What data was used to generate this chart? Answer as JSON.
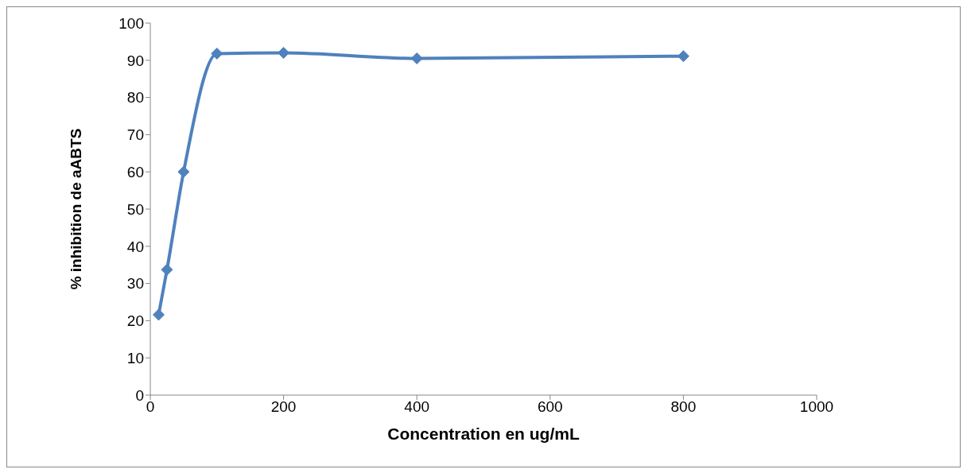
{
  "chart_data": {
    "type": "line",
    "xlabel": "Concentration en ug/mL",
    "ylabel": "% inhibition de aABTS",
    "x": [
      12.5,
      25,
      50,
      100,
      200,
      400,
      800
    ],
    "series": [
      {
        "color": "#4f81bd",
        "values": [
          21.6,
          33.7,
          60,
          91.8,
          92,
          90.5,
          91.1
        ]
      }
    ],
    "xlim": [
      0,
      1000
    ],
    "xticks": [
      0,
      200,
      400,
      600,
      800,
      1000
    ],
    "ylim": [
      0,
      100
    ],
    "yticks": [
      0,
      10,
      20,
      30,
      40,
      50,
      60,
      70,
      80,
      90,
      100
    ],
    "grid": false,
    "legend": false,
    "marker": "diamond",
    "line_style": "solid"
  }
}
